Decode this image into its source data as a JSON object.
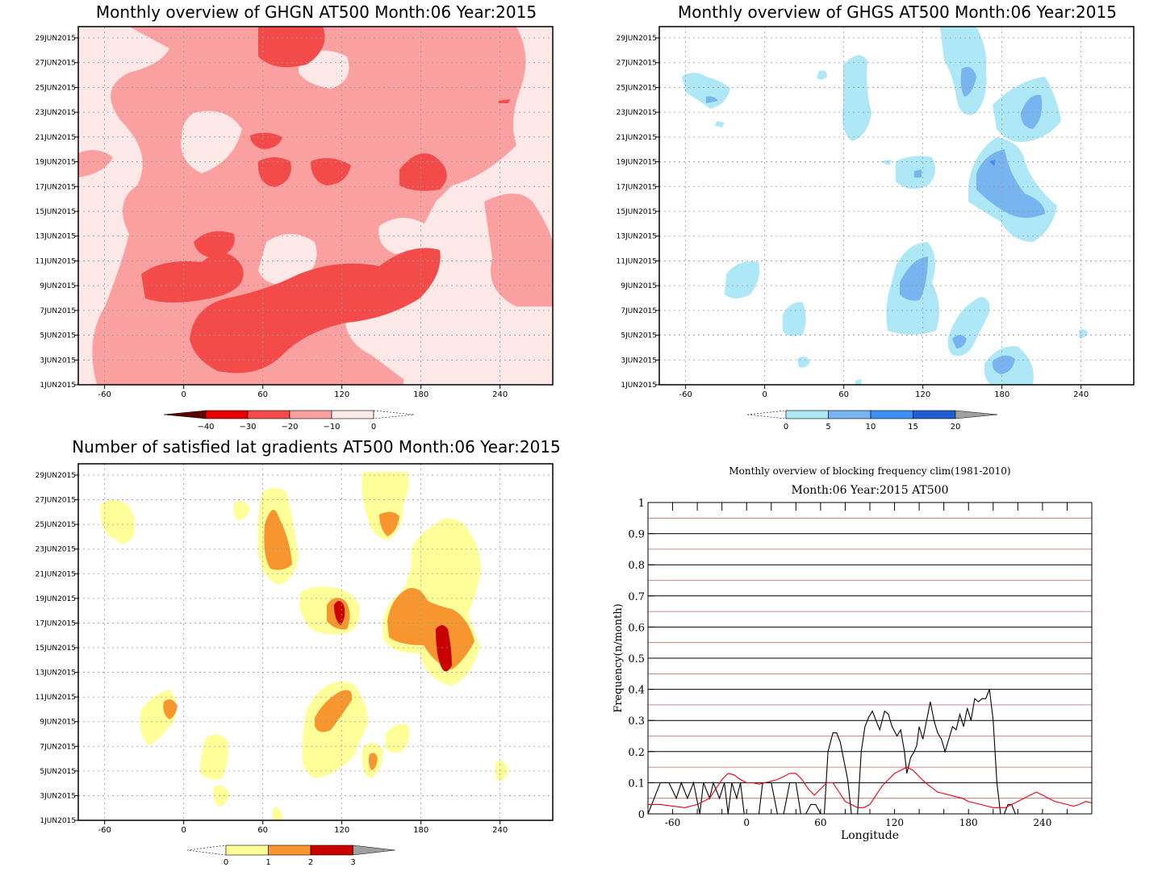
{
  "panels": {
    "ghgn": {
      "title": "Monthly overview of GHGN AT500 Month:06 Year:2015",
      "x_ticks": [
        "-60",
        "0",
        "60",
        "120",
        "180",
        "240"
      ],
      "colorbar": {
        "labels": [
          "−40",
          "−30",
          "−20",
          "−10",
          "0"
        ],
        "colors": [
          "#5c0000",
          "#e80000",
          "#f34a4a",
          "#fba0a0",
          "#fde8e8"
        ]
      }
    },
    "ghgs": {
      "title": "Monthly overview of GHGS AT500 Month:06 Year:2015",
      "x_ticks": [
        "-60",
        "0",
        "60",
        "120",
        "180",
        "240"
      ],
      "colorbar": {
        "labels": [
          "0",
          "5",
          "10",
          "15",
          "20"
        ],
        "colors": [
          "#aee8f6",
          "#78b4f0",
          "#3c8ef0",
          "#1e5ed2",
          "#a0a0a0"
        ]
      }
    },
    "lat": {
      "title": "Number of satisfied lat gradients AT500 Month:06 Year:2015",
      "x_ticks": [
        "-60",
        "0",
        "60",
        "120",
        "180",
        "240"
      ],
      "colorbar": {
        "labels": [
          "0",
          "1",
          "2",
          "3"
        ],
        "colors": [
          "#ffff99",
          "#f7962e",
          "#c80000",
          "#a0a0a0"
        ]
      }
    },
    "freq": {
      "title": "Monthly overview of blocking frequency clim(1981-2010)",
      "subtitle": "Month:06 Year:2015  AT500",
      "xlabel": "Longitude",
      "ylabel": "Frequency(n/month)"
    }
  },
  "date_ticks": [
    "29JUN2015",
    "27JUN2015",
    "25JUN2015",
    "23JUN2015",
    "21JUN2015",
    "19JUN2015",
    "17JUN2015",
    "15JUN2015",
    "13JUN2015",
    "11JUN2015",
    "9JUN2015",
    "7JUN2015",
    "5JUN2015",
    "3JUN2015",
    "1JUN2015"
  ],
  "chart_data": [
    {
      "type": "heatmap",
      "title": "Monthly overview of GHGN AT500 Month:06 Year:2015",
      "xlim": [
        -80,
        280
      ],
      "x_ticks": [
        -60,
        0,
        60,
        120,
        180,
        240
      ],
      "color_levels": [
        -40,
        -30,
        -20,
        -10,
        0
      ]
    },
    {
      "type": "heatmap",
      "title": "Monthly overview of GHGS AT500 Month:06 Year:2015",
      "xlim": [
        -80,
        280
      ],
      "x_ticks": [
        -60,
        0,
        60,
        120,
        180,
        240
      ],
      "color_levels": [
        0,
        5,
        10,
        15,
        20
      ]
    },
    {
      "type": "heatmap",
      "title": "Number of satisfied lat gradients AT500 Month:06 Year:2015",
      "xlim": [
        -80,
        280
      ],
      "x_ticks": [
        -60,
        0,
        60,
        120,
        180,
        240
      ],
      "color_levels": [
        0,
        1,
        2,
        3
      ]
    },
    {
      "type": "line",
      "title": "Monthly overview of blocking frequency clim(1981-2010)",
      "subtitle": "Month:06 Year:2015  AT500",
      "xlabel": "Longitude",
      "ylabel": "Frequency(n/month)",
      "xlim": [
        -80,
        280
      ],
      "ylim": [
        0,
        1
      ],
      "x_ticks": [
        -60,
        0,
        60,
        120,
        180,
        240
      ],
      "y_ticks": [
        0,
        0.1,
        0.2,
        0.3,
        0.4,
        0.5,
        0.6,
        0.7,
        0.8,
        0.9,
        1
      ],
      "series": [
        {
          "color": "#000000",
          "x": [
            -80,
            -70,
            -63,
            -57,
            -53,
            -48,
            -43,
            -38,
            -35,
            -30,
            -27,
            -22,
            -18,
            -15,
            -12,
            -8,
            -5,
            -2,
            0,
            10,
            13,
            20,
            25,
            30,
            35,
            40,
            44,
            48,
            52,
            56,
            60,
            63,
            66,
            70,
            73,
            76,
            79,
            82,
            85,
            88,
            90,
            93,
            96,
            99,
            102,
            105,
            108,
            112,
            115,
            118,
            122,
            125,
            128,
            130,
            133,
            136,
            138,
            140,
            143,
            146,
            149,
            152,
            155,
            158,
            161,
            164,
            167,
            170,
            173,
            176,
            179,
            182,
            185,
            188,
            191,
            194,
            197,
            200,
            203,
            206,
            209,
            212,
            215,
            218,
            221,
            224,
            227,
            230,
            233,
            236,
            240,
            244,
            248
          ],
          "y": [
            0,
            0.1,
            0.1,
            0.05,
            0.1,
            0.05,
            0.1,
            0,
            0.1,
            0.05,
            0.1,
            0.05,
            0.1,
            0,
            0.1,
            0.05,
            0.1,
            0,
            0,
            0,
            0.1,
            0.1,
            0,
            0,
            0.1,
            0.1,
            0,
            0,
            0.03,
            0.03,
            0,
            0,
            0.2,
            0.26,
            0.26,
            0.23,
            0.17,
            0.11,
            0,
            0,
            0,
            0.2,
            0.28,
            0.31,
            0.33,
            0.3,
            0.27,
            0.33,
            0.32,
            0.28,
            0.25,
            0.27,
            0.2,
            0.13,
            0.18,
            0.2,
            0.22,
            0.28,
            0.24,
            0.3,
            0.36,
            0.3,
            0.26,
            0.24,
            0.2,
            0.24,
            0.28,
            0.27,
            0.32,
            0.28,
            0.34,
            0.3,
            0.37,
            0.36,
            0.37,
            0.37,
            0.4,
            0.3,
            0.1,
            0,
            0,
            0.03,
            0.03,
            0,
            0,
            0,
            0,
            0,
            0,
            0,
            0,
            0,
            0
          ]
        },
        {
          "color": "#e8000e",
          "x": [
            -80,
            -70,
            -60,
            -50,
            -40,
            -30,
            -25,
            -20,
            -15,
            -10,
            -5,
            0,
            5,
            10,
            15,
            20,
            25,
            30,
            35,
            40,
            45,
            50,
            55,
            60,
            65,
            70,
            75,
            80,
            85,
            90,
            95,
            100,
            105,
            110,
            115,
            120,
            125,
            130,
            135,
            140,
            145,
            150,
            155,
            160,
            165,
            170,
            175,
            180,
            185,
            190,
            195,
            200,
            205,
            210,
            215,
            220,
            225,
            230,
            235,
            240,
            245,
            250,
            255,
            260,
            265,
            270,
            275,
            280
          ],
          "y": [
            0.03,
            0.03,
            0.025,
            0.02,
            0.03,
            0.05,
            0.08,
            0.11,
            0.13,
            0.125,
            0.11,
            0.1,
            0.1,
            0.095,
            0.1,
            0.105,
            0.11,
            0.12,
            0.13,
            0.13,
            0.11,
            0.08,
            0.06,
            0.08,
            0.1,
            0.1,
            0.07,
            0.04,
            0.03,
            0.02,
            0.02,
            0.03,
            0.06,
            0.09,
            0.11,
            0.13,
            0.14,
            0.15,
            0.14,
            0.12,
            0.1,
            0.085,
            0.07,
            0.065,
            0.06,
            0.055,
            0.05,
            0.04,
            0.035,
            0.03,
            0.025,
            0.02,
            0.02,
            0.02,
            0.03,
            0.04,
            0.05,
            0.06,
            0.07,
            0.06,
            0.05,
            0.04,
            0.035,
            0.03,
            0.025,
            0.03,
            0.04,
            0.035
          ]
        }
      ]
    }
  ]
}
